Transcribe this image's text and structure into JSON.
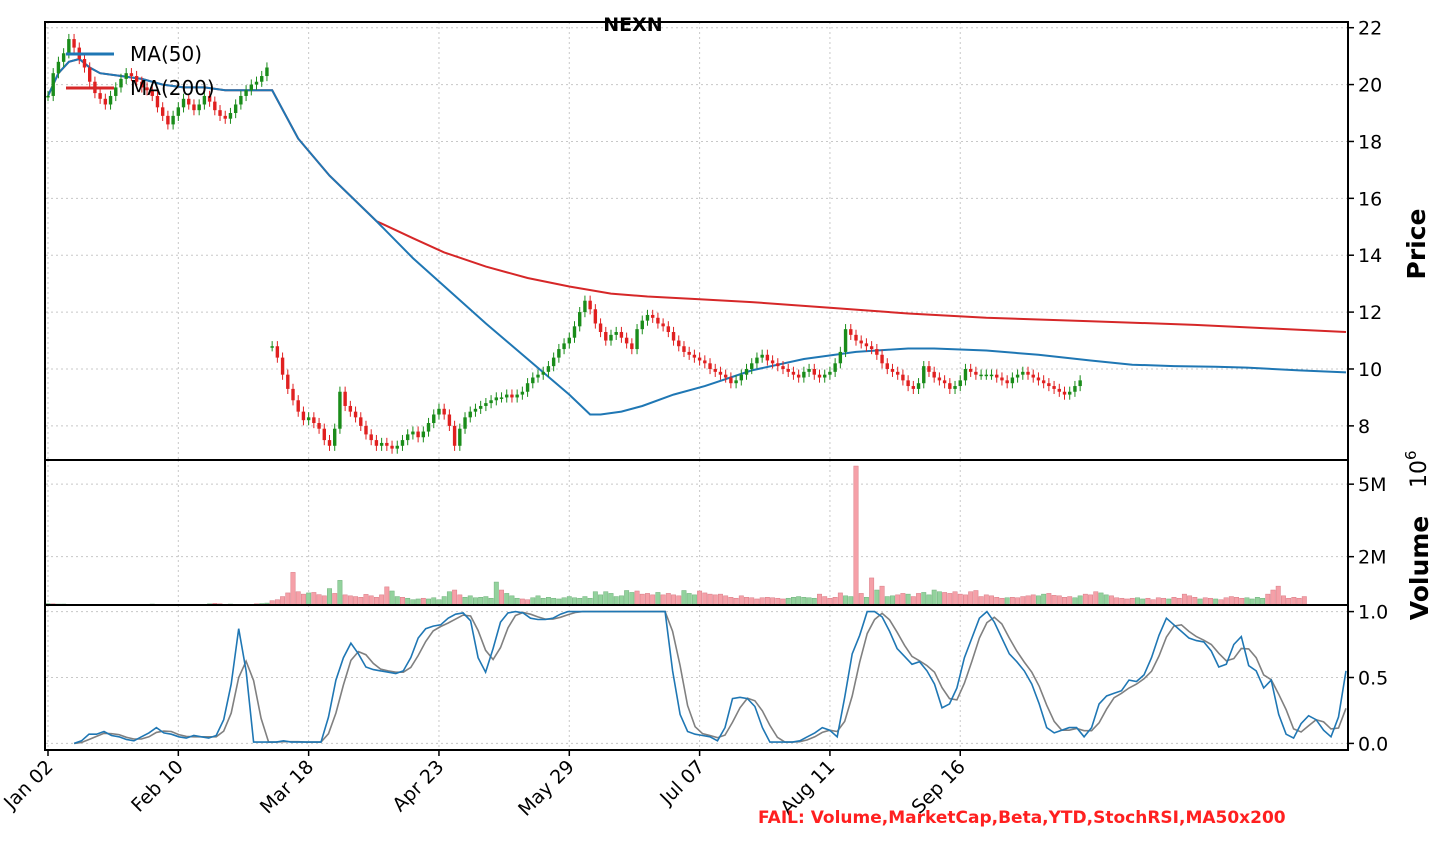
{
  "chart_data": {
    "type": "candlestick",
    "title": "NEXN",
    "x_tick_labels": [
      "Jan 02",
      "Feb 10",
      "Mar 18",
      "Apr 23",
      "May 29",
      "Jul 07",
      "Aug 11",
      "Sep 16"
    ],
    "colors": {
      "up": "#1a8c1a",
      "down": "#e02020",
      "ma50": "#1f77b4",
      "ma200": "#d62728",
      "vol_up": "#93d29d",
      "vol_down": "#f5a0a8",
      "stoch_k": "#1f77b4",
      "stoch_d": "#808080"
    },
    "price_panel": {
      "ylabel": "Price",
      "ylim": [
        6.8,
        22.2
      ],
      "yticks": [
        8,
        10,
        12,
        14,
        16,
        18,
        20,
        22
      ],
      "legend": [
        "MA(50)",
        "MA(200)"
      ],
      "legend_position": "top-left",
      "grid": true,
      "candle_segments": [
        {
          "start": 0,
          "values": [
            19.6,
            20.4,
            20.8,
            21.1,
            21.6,
            21.3,
            20.9,
            20.6,
            20.1,
            19.7,
            19.5,
            19.3,
            19.6,
            19.9,
            20.2,
            20.4,
            20.3,
            20.1,
            19.9,
            19.8,
            19.6,
            19.2,
            18.9,
            18.6,
            18.9,
            19.2,
            19.5,
            19.3,
            19.1,
            19.3,
            19.6,
            19.4,
            19.1,
            18.9,
            18.8,
            19.0,
            19.3,
            19.6,
            19.8,
            20.0,
            20.1,
            20.3,
            20.6
          ]
        },
        {
          "start": 43,
          "values": [
            10.8,
            10.4,
            9.8,
            9.3,
            8.9,
            8.5,
            8.2,
            8.3,
            8.1,
            7.9,
            7.5,
            7.3,
            7.9,
            9.2,
            8.7,
            8.5,
            8.3,
            8.0,
            7.7,
            7.5,
            7.3,
            7.4,
            7.3,
            7.2,
            7.3,
            7.5,
            7.7,
            7.8,
            7.6,
            7.8,
            8.1,
            8.4,
            8.6,
            8.4,
            8.0,
            7.3,
            7.9,
            8.3,
            8.5,
            8.6,
            8.7,
            8.8,
            8.9,
            9.0,
            9.0,
            9.1,
            9.0,
            9.1,
            9.2,
            9.5,
            9.7,
            9.8,
            9.9,
            10.1,
            10.4,
            10.7,
            10.9,
            11.1,
            11.5,
            12.0,
            12.4,
            12.1,
            11.6,
            11.3,
            11.0,
            11.2,
            11.3,
            11.1,
            10.9,
            10.7,
            11.4,
            11.7,
            11.9,
            11.8,
            11.6,
            11.5,
            11.3,
            11.0,
            10.8,
            10.6,
            10.5,
            10.4,
            10.3,
            10.2,
            10.0,
            9.9,
            9.8,
            9.7,
            9.5,
            9.6,
            9.8,
            10.0,
            10.2,
            10.4,
            10.5,
            10.3,
            10.2,
            10.1,
            10.0,
            9.9,
            9.8,
            9.7,
            9.9,
            10.0,
            9.8,
            9.7,
            9.8,
            9.9,
            10.2,
            10.6,
            11.4,
            11.2,
            11.0,
            10.9,
            10.8,
            10.7,
            10.5,
            10.2,
            10.0,
            9.9,
            9.8,
            9.6,
            9.4,
            9.3,
            9.5,
            10.1,
            9.9,
            9.7,
            9.6,
            9.5,
            9.3,
            9.4,
            9.6,
            10.0,
            9.9,
            9.8,
            9.8,
            9.8,
            9.8,
            9.7,
            9.6,
            9.5,
            9.7,
            9.8,
            9.9,
            9.8,
            9.7,
            9.6,
            9.5,
            9.4,
            9.3,
            9.2,
            9.1,
            9.2,
            9.4,
            9.6
          ]
        }
      ],
      "ma50": [
        [
          0,
          19.6
        ],
        [
          2,
          20.4
        ],
        [
          4,
          20.8
        ],
        [
          6,
          20.9
        ],
        [
          8,
          20.6
        ],
        [
          10,
          20.4
        ],
        [
          14,
          20.3
        ],
        [
          18,
          20.2
        ],
        [
          22,
          20.0
        ],
        [
          26,
          19.9
        ],
        [
          30,
          19.9
        ],
        [
          34,
          19.8
        ],
        [
          38,
          19.8
        ],
        [
          40,
          19.8
        ],
        [
          43,
          19.8
        ],
        [
          48,
          18.1
        ],
        [
          54,
          16.8
        ],
        [
          63,
          15.2
        ],
        [
          70,
          13.9
        ],
        [
          84,
          11.6
        ],
        [
          100,
          9.1
        ],
        [
          104,
          8.4
        ],
        [
          106,
          8.4
        ],
        [
          110,
          8.5
        ],
        [
          114,
          8.7
        ],
        [
          120,
          9.1
        ],
        [
          126,
          9.4
        ],
        [
          135,
          9.95
        ],
        [
          145,
          10.35
        ],
        [
          155,
          10.6
        ],
        [
          165,
          10.72
        ],
        [
          170,
          10.72
        ],
        [
          180,
          10.65
        ],
        [
          190,
          10.5
        ],
        [
          200,
          10.3
        ],
        [
          208,
          10.15
        ],
        [
          216,
          10.1
        ],
        [
          224,
          10.08
        ],
        [
          230,
          10.05
        ],
        [
          240,
          9.95
        ],
        [
          249,
          9.88
        ]
      ],
      "ma200": [
        [
          0,
          19.6
        ],
        [
          2,
          20.4
        ],
        [
          4,
          20.8
        ],
        [
          6,
          20.9
        ],
        [
          8,
          20.6
        ],
        [
          10,
          20.4
        ],
        [
          14,
          20.3
        ],
        [
          18,
          20.2
        ],
        [
          22,
          20.0
        ],
        [
          26,
          19.9
        ],
        [
          30,
          19.9
        ],
        [
          34,
          19.8
        ],
        [
          38,
          19.8
        ],
        [
          40,
          19.8
        ],
        [
          43,
          19.8
        ],
        [
          48,
          18.1
        ],
        [
          54,
          16.8
        ],
        [
          63,
          15.2
        ],
        [
          70,
          14.6
        ],
        [
          76,
          14.1
        ],
        [
          84,
          13.6
        ],
        [
          92,
          13.2
        ],
        [
          100,
          12.9
        ],
        [
          108,
          12.65
        ],
        [
          115,
          12.55
        ],
        [
          125,
          12.45
        ],
        [
          135,
          12.35
        ],
        [
          150,
          12.15
        ],
        [
          165,
          11.95
        ],
        [
          180,
          11.8
        ],
        [
          200,
          11.68
        ],
        [
          220,
          11.55
        ],
        [
          249,
          11.3
        ]
      ]
    },
    "volume_panel": {
      "ylabel": "Volume",
      "exponent_label": "10",
      "exponent_power": "6",
      "ylim": [
        0,
        6.0
      ],
      "yticks": [
        2,
        5
      ],
      "ytick_labels": [
        "2M",
        "5M"
      ],
      "grid": true,
      "values": [
        0.06,
        0.05,
        0.04,
        0.04,
        0.03,
        0.03,
        0.03,
        0.02,
        0.02,
        0.02,
        0.02,
        0.03,
        0.02,
        0.02,
        0.03,
        0.02,
        0.02,
        0.02,
        0.02,
        0.02,
        0.04,
        0.03,
        0.02,
        0.03,
        0.02,
        0.02,
        0.02,
        0.02,
        0.02,
        0.02,
        0.03,
        0.05,
        0.07,
        0.05,
        0.03,
        0.04,
        0.03,
        0.02,
        0.02,
        0.03,
        0.05,
        0.06,
        0.08,
        0.18,
        0.22,
        0.35,
        0.5,
        1.35,
        0.55,
        0.45,
        0.5,
        0.52,
        0.43,
        0.38,
        0.68,
        0.48,
        1.02,
        0.42,
        0.38,
        0.35,
        0.32,
        0.44,
        0.38,
        0.32,
        0.42,
        0.75,
        0.58,
        0.35,
        0.32,
        0.28,
        0.22,
        0.25,
        0.28,
        0.25,
        0.3,
        0.22,
        0.35,
        0.55,
        0.62,
        0.42,
        0.32,
        0.38,
        0.3,
        0.32,
        0.35,
        0.28,
        0.95,
        0.62,
        0.48,
        0.38,
        0.28,
        0.25,
        0.22,
        0.3,
        0.38,
        0.28,
        0.32,
        0.28,
        0.25,
        0.3,
        0.35,
        0.3,
        0.28,
        0.35,
        0.28,
        0.55,
        0.42,
        0.55,
        0.48,
        0.35,
        0.38,
        0.6,
        0.52,
        0.58,
        0.45,
        0.48,
        0.42,
        0.52,
        0.42,
        0.48,
        0.42,
        0.38,
        0.6,
        0.48,
        0.42,
        0.58,
        0.5,
        0.45,
        0.42,
        0.45,
        0.38,
        0.32,
        0.28,
        0.38,
        0.32,
        0.3,
        0.25,
        0.3,
        0.32,
        0.3,
        0.28,
        0.25,
        0.28,
        0.32,
        0.35,
        0.32,
        0.3,
        0.28,
        0.45,
        0.35,
        0.28,
        0.32,
        0.5,
        0.38,
        0.35,
        5.75,
        0.48,
        0.32,
        1.12,
        0.62,
        0.78,
        0.35,
        0.38,
        0.42,
        0.48,
        0.45,
        0.35,
        0.48,
        0.52,
        0.42,
        0.62,
        0.55,
        0.52,
        0.48,
        0.55,
        0.45,
        0.42,
        0.55,
        0.6,
        0.35,
        0.42,
        0.38,
        0.32,
        0.28,
        0.3,
        0.32,
        0.3,
        0.35,
        0.38,
        0.42,
        0.38,
        0.45,
        0.48,
        0.4,
        0.38,
        0.32,
        0.35,
        0.3,
        0.38,
        0.45,
        0.42,
        0.55,
        0.5,
        0.42,
        0.38,
        0.3,
        0.28,
        0.25,
        0.28,
        0.3,
        0.25,
        0.28,
        0.22,
        0.3,
        0.28,
        0.25,
        0.32,
        0.28,
        0.45,
        0.38,
        0.32,
        0.25,
        0.3,
        0.28,
        0.25,
        0.22,
        0.3,
        0.35,
        0.32,
        0.28,
        0.3,
        0.25,
        0.32,
        0.28,
        0.45,
        0.62,
        0.78,
        0.38,
        0.28,
        0.32,
        0.28,
        0.35
      ],
      "up_flags": [
        1,
        0,
        1,
        1,
        0,
        1,
        0,
        0,
        0,
        1,
        0,
        1,
        0,
        1,
        1,
        0,
        0,
        1,
        0,
        1,
        1,
        0,
        0,
        1,
        1,
        0,
        1,
        0,
        1,
        1,
        1,
        1,
        0,
        0,
        1,
        1,
        0,
        1,
        1,
        1,
        0,
        1,
        1,
        0,
        0,
        0,
        0,
        0,
        0,
        0,
        1,
        0,
        0,
        0,
        1,
        0,
        1,
        0,
        0,
        0,
        0,
        0,
        0,
        0,
        0,
        0,
        1,
        1,
        0,
        1,
        1,
        1,
        0,
        1,
        1,
        1,
        1,
        1,
        0,
        0,
        1,
        1,
        1,
        1,
        1,
        1,
        1,
        0,
        1,
        1,
        1,
        0,
        0,
        1,
        1,
        1,
        1,
        1,
        1,
        1,
        1,
        1,
        1,
        1,
        1,
        1,
        1,
        1,
        1,
        1,
        1,
        1,
        1,
        0,
        0,
        0,
        0,
        1,
        0,
        0,
        0,
        0,
        1,
        1,
        1,
        0,
        0,
        0,
        0,
        0,
        0,
        0,
        0,
        0,
        0,
        0,
        0,
        0,
        0,
        0,
        0,
        0,
        1,
        1,
        1,
        1,
        1,
        1,
        0,
        0,
        0,
        0,
        0,
        1,
        1,
        0,
        0,
        1,
        0,
        1,
        0,
        1,
        1,
        0,
        0,
        1,
        0,
        0,
        1,
        1,
        1,
        1,
        0,
        0,
        0,
        0,
        0,
        0,
        0,
        0,
        0,
        0,
        0,
        0,
        1,
        0,
        0,
        0,
        0,
        0,
        1,
        1,
        0,
        0,
        0,
        0,
        0,
        1,
        1,
        0,
        0,
        0,
        1,
        1,
        0,
        0,
        0,
        0,
        0,
        1,
        1,
        0,
        0,
        0,
        0,
        1,
        0,
        0,
        0,
        0,
        0,
        1,
        0,
        0,
        1,
        0,
        0,
        0,
        0,
        0,
        1,
        1,
        1,
        1
      ]
    },
    "stoch_panel": {
      "ylim": [
        -0.05,
        1.05
      ],
      "yticks": [
        0.0,
        0.5,
        1.0
      ],
      "ytick_labels": [
        "0.0",
        "0.5",
        "1.0"
      ],
      "grid": true,
      "k_start": 5,
      "k": [
        0.0,
        0.02,
        0.07,
        0.07,
        0.09,
        0.06,
        0.05,
        0.03,
        0.02,
        0.05,
        0.08,
        0.12,
        0.08,
        0.07,
        0.05,
        0.04,
        0.06,
        0.05,
        0.04,
        0.06,
        0.18,
        0.45,
        0.87,
        0.55,
        0.01,
        0.01,
        0.01,
        0.01,
        0.02,
        0.01,
        0.01,
        0.01,
        0.01,
        0.01,
        0.2,
        0.48,
        0.65,
        0.76,
        0.68,
        0.58,
        0.56,
        0.55,
        0.54,
        0.53,
        0.55,
        0.65,
        0.8,
        0.87,
        0.89,
        0.9,
        0.95,
        0.98,
        0.99,
        0.93,
        0.65,
        0.54,
        0.72,
        0.92,
        0.99,
        1.0,
        0.99,
        0.95,
        0.94,
        0.94,
        0.95,
        0.98,
        1.0,
        1.0,
        1.0,
        1.0,
        1.0,
        1.0,
        1.0,
        1.0,
        1.0,
        1.0,
        1.0,
        1.0,
        1.0,
        1.0,
        0.55,
        0.22,
        0.09,
        0.07,
        0.06,
        0.05,
        0.02,
        0.12,
        0.34,
        0.35,
        0.34,
        0.28,
        0.12,
        0.01,
        0.01,
        0.01,
        0.01,
        0.02,
        0.05,
        0.08,
        0.12,
        0.1,
        0.05,
        0.35,
        0.68,
        0.82,
        1.0,
        1.0,
        0.96,
        0.85,
        0.72,
        0.66,
        0.6,
        0.62,
        0.55,
        0.45,
        0.27,
        0.3,
        0.42,
        0.65,
        0.8,
        0.95,
        1.0,
        0.92,
        0.8,
        0.68,
        0.62,
        0.55,
        0.45,
        0.3,
        0.12,
        0.08,
        0.1,
        0.12,
        0.12,
        0.05,
        0.12,
        0.3,
        0.36,
        0.38,
        0.4,
        0.48,
        0.47,
        0.52,
        0.65,
        0.82,
        0.95,
        0.9,
        0.85,
        0.8,
        0.78,
        0.77,
        0.7,
        0.58,
        0.6,
        0.75,
        0.81,
        0.59,
        0.55,
        0.42,
        0.48,
        0.22,
        0.07,
        0.04,
        0.15,
        0.21,
        0.18,
        0.1,
        0.05,
        0.2,
        0.55
      ]
    },
    "status_text": "FAIL: Volume,MarketCap,Beta,YTD,StochRSI,MA50x200"
  }
}
